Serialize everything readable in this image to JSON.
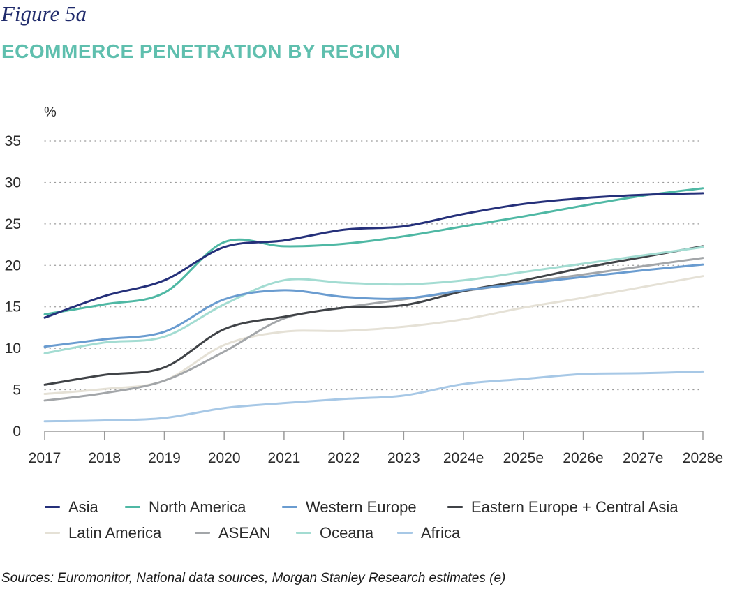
{
  "figure_label": "Figure 5a",
  "title": "ECOMMERCE PENETRATION BY REGION",
  "source": "Sources: Euromonitor, National data sources, Morgan Stanley Research estimates (e)",
  "chart_data": {
    "type": "line",
    "title": "ECOMMERCE PENETRATION BY REGION",
    "xlabel": "",
    "ylabel": "%",
    "ylim": [
      0,
      35
    ],
    "yticks": [
      0,
      5,
      10,
      15,
      20,
      25,
      30,
      35
    ],
    "grid": true,
    "legend_position": "bottom",
    "categories": [
      "2017",
      "2018",
      "2019",
      "2020",
      "2021",
      "2022",
      "2023",
      "2024e",
      "2025e",
      "2026e",
      "2027e",
      "2028e"
    ],
    "series": [
      {
        "name": "Asia",
        "color": "#25307a",
        "values": [
          13.7,
          16.3,
          18.2,
          22.2,
          23.0,
          24.3,
          24.7,
          26.2,
          27.4,
          28.1,
          28.5,
          28.7
        ]
      },
      {
        "name": "North America",
        "color": "#4fb8a4",
        "values": [
          14.1,
          15.3,
          16.7,
          22.8,
          22.3,
          22.6,
          23.5,
          24.7,
          25.9,
          27.2,
          28.4,
          29.3
        ]
      },
      {
        "name": "Western Europe",
        "color": "#6a9cd0",
        "values": [
          10.2,
          11.1,
          12.0,
          15.9,
          17.0,
          16.2,
          16.0,
          17.0,
          17.8,
          18.6,
          19.4,
          20.1
        ]
      },
      {
        "name": "Eastern Europe + Central Asia",
        "color": "#404347",
        "values": [
          5.6,
          6.8,
          7.7,
          12.3,
          13.8,
          14.9,
          15.2,
          16.9,
          18.2,
          19.7,
          21.0,
          22.3
        ]
      },
      {
        "name": "Latin America",
        "color": "#e5e1d6",
        "values": [
          4.5,
          5.1,
          6.1,
          10.4,
          12.0,
          12.1,
          12.6,
          13.5,
          14.9,
          16.1,
          17.4,
          18.7
        ]
      },
      {
        "name": "ASEAN",
        "color": "#a3a6a9",
        "values": [
          3.7,
          4.6,
          6.1,
          9.6,
          13.6,
          14.9,
          15.9,
          16.9,
          17.9,
          18.9,
          19.9,
          20.9
        ]
      },
      {
        "name": "Oceana",
        "color": "#a3dcd2",
        "values": [
          9.4,
          10.7,
          11.4,
          15.3,
          18.2,
          17.9,
          17.7,
          18.2,
          19.2,
          20.2,
          21.2,
          22.2
        ]
      },
      {
        "name": "Africa",
        "color": "#a7c8e6",
        "values": [
          1.2,
          1.3,
          1.6,
          2.8,
          3.4,
          3.9,
          4.3,
          5.7,
          6.3,
          6.9,
          7.0,
          7.2
        ]
      }
    ]
  },
  "legend": {
    "row1": [
      "Asia",
      "North America",
      "Western Europe",
      "Eastern Europe + Central Asia"
    ],
    "row2": [
      "Latin America",
      "ASEAN",
      "Oceana",
      "Africa"
    ]
  }
}
